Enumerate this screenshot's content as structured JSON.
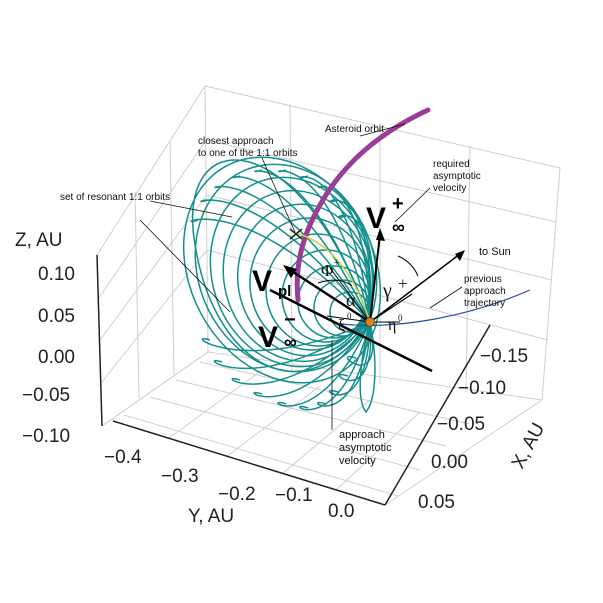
{
  "colors": {
    "grid": "#cfcfcf",
    "mesh": "#138f8c",
    "asteroid_orbit": "#9a3d97",
    "approach_trajectory": "#2b4e9e",
    "closest_segment": "#c8d24a",
    "marker": "#e0821e",
    "vector": "#000000"
  },
  "axes": {
    "z": {
      "label": "Z, AU",
      "ticks": [
        "0.10",
        "0.05",
        "0.00",
        "−0.05",
        "−0.10"
      ]
    },
    "y": {
      "label": "Y, AU",
      "ticks": [
        "−0.4",
        "−0.3",
        "−0.2",
        "−0.1",
        "0.0"
      ]
    },
    "x": {
      "label": "X, AU",
      "ticks": [
        "−0.15",
        "−0.10",
        "−0.05",
        "0.00",
        "0.05"
      ]
    }
  },
  "annotations": {
    "asteroid_orbit": "Asteroid orbit",
    "closest_approach_l1": "closest approach",
    "closest_approach_l2": "to one of the 1:1 orbits",
    "resonant_set": "set of resonant 1:1 orbits",
    "required_l1": "required",
    "required_l2": "asymptotic",
    "required_l3": "velocity",
    "to_sun": "to Sun",
    "previous_l1": "previous",
    "previous_l2": "approach",
    "previous_l3": "trajectory",
    "approach_l1": "approach",
    "approach_l2": "asymptotic",
    "approach_l3": "velocity"
  },
  "symbols": {
    "v_plus_base": "V",
    "v_plus_sub": "∞",
    "v_plus_sup": "+",
    "v_minus_base": "V",
    "v_minus_sub": "∞",
    "v_minus_sup": "−",
    "v_pl_base": "V",
    "v_pl_sub": "pl",
    "phi": "Φ",
    "phi_sup": "+",
    "gamma": "γ",
    "gamma_sup": "+",
    "alpha": "α",
    "xi": "ξ",
    "xi_sup": "0",
    "eta": "η",
    "eta_sup": "0"
  }
}
